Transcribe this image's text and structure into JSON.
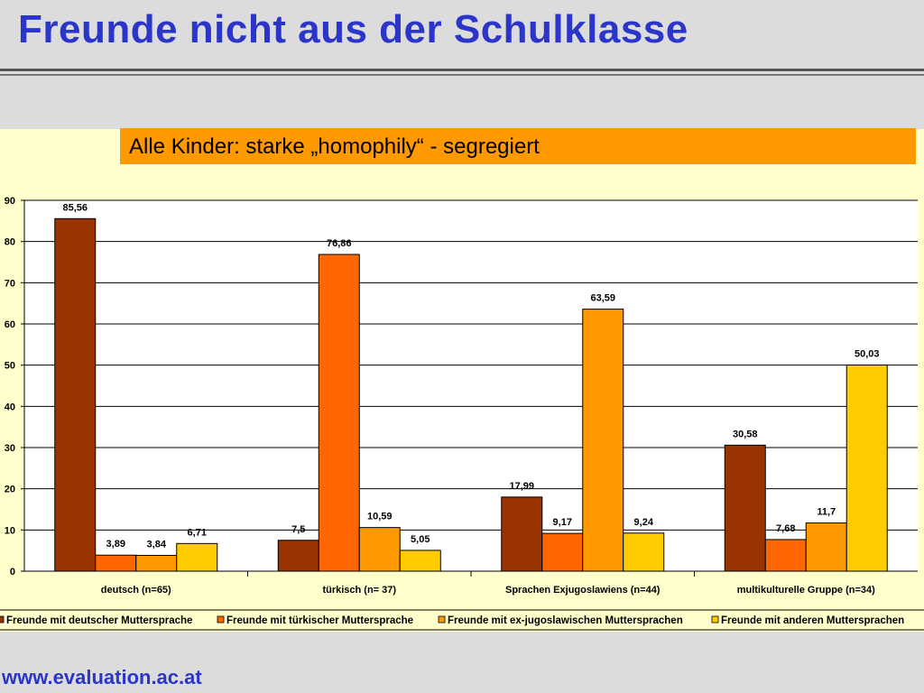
{
  "slide": {
    "title": "Freunde nicht aus der Schulklasse",
    "subtitle": "Alle Kinder: starke „homophily“ - segregiert",
    "footer": "www.evaluation.ac.at"
  },
  "colors": {
    "title": "#2b35c9",
    "banner": "#ff9900",
    "chart_bg": "#ffffcc"
  },
  "chart_data": {
    "type": "bar",
    "categories": [
      "deutsch (n=65)",
      "türkisch (n= 37)",
      "Sprachen Exjugoslawiens (n=44)",
      "multikulturelle Gruppe (n=34)"
    ],
    "series": [
      {
        "name": "Freunde mit deutscher Muttersprache",
        "color": "#993300",
        "values": [
          85.56,
          7.5,
          17.99,
          30.58
        ],
        "labels": [
          "85,56",
          "7,5",
          "17,99",
          "30,58"
        ]
      },
      {
        "name": "Freunde mit türkischer Muttersprache",
        "color": "#ff6600",
        "values": [
          3.89,
          76.86,
          9.17,
          7.68
        ],
        "labels": [
          "3,89",
          "76,86",
          "9,17",
          "7,68"
        ]
      },
      {
        "name": "Freunde mit ex-jugoslawischen Muttersprachen",
        "color": "#ff9900",
        "values": [
          3.84,
          10.59,
          63.59,
          11.7
        ],
        "labels": [
          "3,84",
          "10,59",
          "63,59",
          "11,7"
        ]
      },
      {
        "name": "Freunde mit anderen Muttersprachen",
        "color": "#ffcc00",
        "values": [
          6.71,
          5.05,
          9.24,
          50.03
        ],
        "labels": [
          "6,71",
          "5,05",
          "9,24",
          "50,03"
        ]
      }
    ],
    "yticks": [
      "0",
      "10",
      "20",
      "30",
      "40",
      "50",
      "60",
      "70",
      "80",
      "90"
    ],
    "ylim": [
      0,
      90
    ],
    "grid": true,
    "legend": "bottom"
  }
}
